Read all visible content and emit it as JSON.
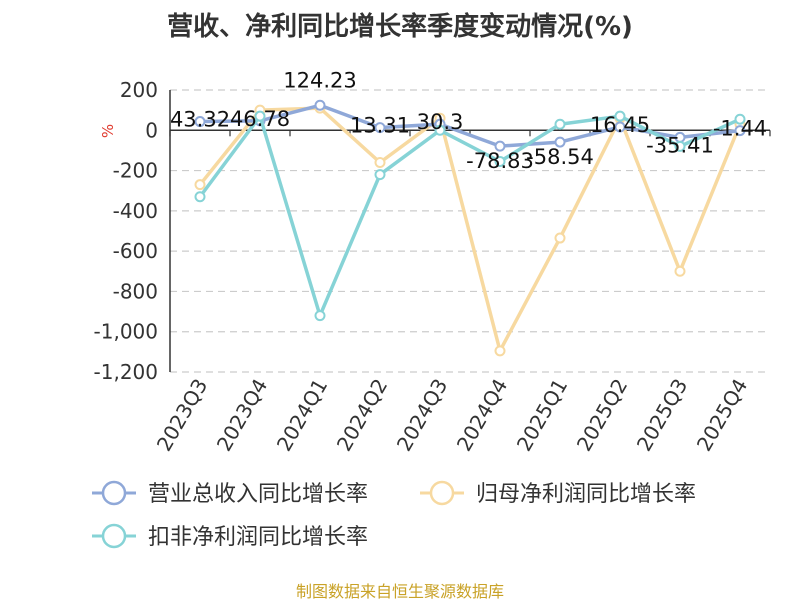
{
  "chart_data": {
    "type": "line",
    "title": "营收、净利同比增长率季度变动情况(%)",
    "ylabel": "%",
    "categories": [
      "2023Q3",
      "2023Q4",
      "2024Q1",
      "2024Q2",
      "2024Q3",
      "2024Q4",
      "2025Q1",
      "2025Q2",
      "2025Q3",
      "2025Q4"
    ],
    "ylim": [
      -1200,
      200
    ],
    "yticks": [
      "200",
      "0",
      "-200",
      "-400",
      "-600",
      "-800",
      "-1,000",
      "-1,200"
    ],
    "ytick_values": [
      200,
      0,
      -200,
      -400,
      -600,
      -800,
      -1000,
      -1200
    ],
    "grid": true,
    "legend_position": "bottom",
    "series": [
      {
        "name": "营业总收入同比增长率",
        "color": "#8fa8d8",
        "values": [
          43.32,
          46.78,
          124.23,
          13.31,
          30.3,
          -78.83,
          -58.54,
          16.45,
          -35.41,
          -1.44
        ],
        "labels": [
          "43.32",
          "46.78",
          "124.23",
          "13.31",
          "30.3",
          "-78.83",
          "-58.54",
          "16.45",
          "-35.41",
          "-1.44"
        ]
      },
      {
        "name": "归母净利润同比增长率",
        "color": "#f7d9a0",
        "values": [
          -270,
          100,
          110,
          -160,
          60,
          -1095,
          -535,
          60,
          -700,
          30
        ]
      },
      {
        "name": "扣非净利润同比增长率",
        "color": "#86d3d6",
        "values": [
          -330,
          70,
          -920,
          -220,
          0,
          -155,
          30,
          70,
          -80,
          55
        ]
      }
    ]
  },
  "source_note": "制图数据来自恒生聚源数据库"
}
